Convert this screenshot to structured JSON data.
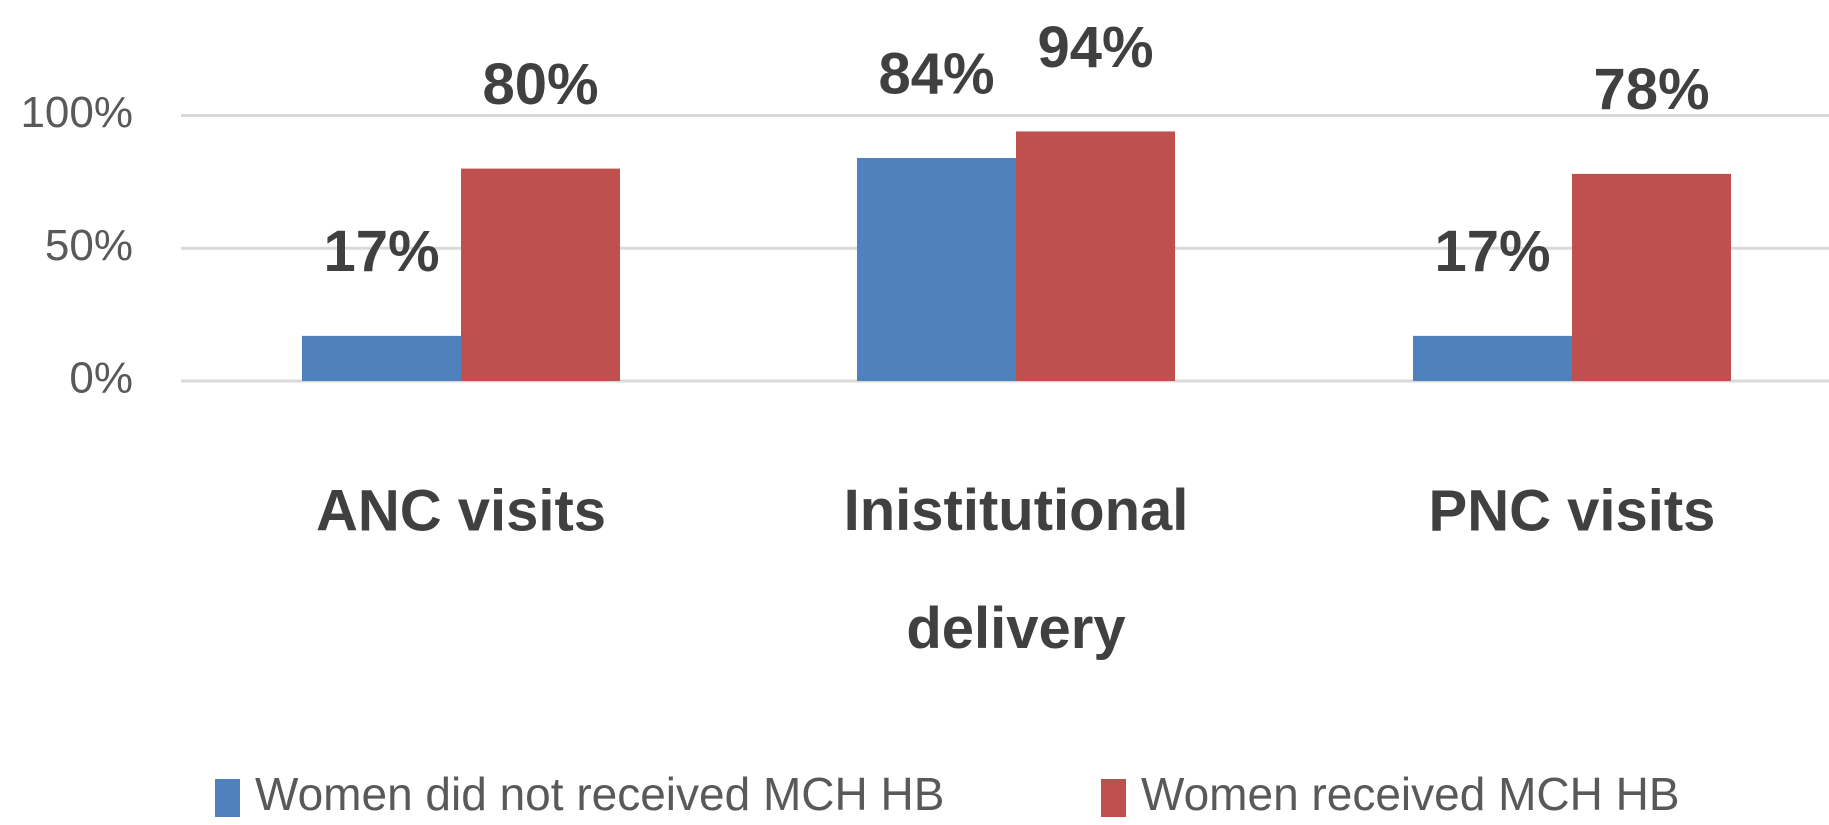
{
  "chart_data": {
    "type": "bar",
    "categories": [
      "ANC visits",
      "Inistitutional delivery",
      "PNC visits"
    ],
    "series": [
      {
        "name": "Women did not received MCH HB",
        "color": "#4f81bd",
        "values": [
          17,
          84,
          17
        ],
        "value_labels": [
          "17%",
          "84%",
          "17%"
        ]
      },
      {
        "name": "Women received MCH HB",
        "color": "#c0504d",
        "values": [
          80,
          94,
          78
        ],
        "value_labels": [
          "80%",
          "94%",
          "78%"
        ]
      }
    ],
    "ylim": [
      0,
      100
    ],
    "yticks": [
      {
        "value": 0,
        "label": "0%"
      },
      {
        "value": 50,
        "label": "50%"
      },
      {
        "value": 100,
        "label": "100%"
      }
    ],
    "grid": true,
    "legend": "bottom"
  }
}
